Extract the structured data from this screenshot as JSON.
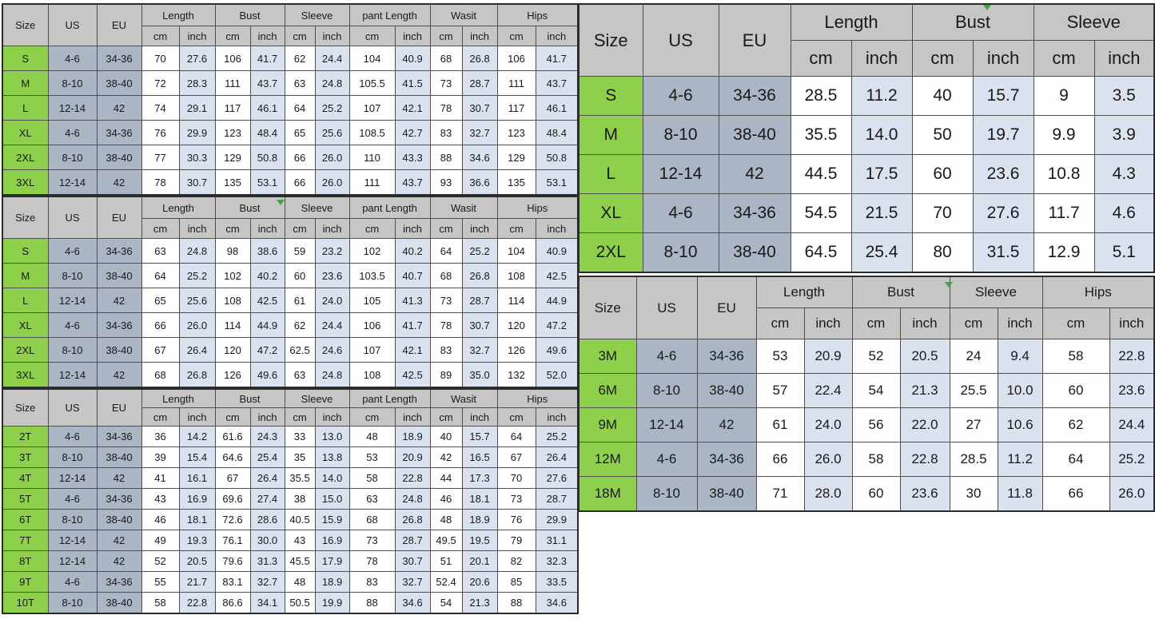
{
  "colors": {
    "header_bg": "#c6c7c5",
    "size_bg": "#8ed04c",
    "useu_bg": "#aab6c3",
    "cm_bg": "#fefefe",
    "inch_bg": "#dbe2ef",
    "border": "#4f4f4f",
    "border_dark": "#2b2b2b",
    "text": "#191919",
    "marker": "#43a047"
  },
  "tables": [
    {
      "corner": [
        "Size",
        "US",
        "EU"
      ],
      "groups": [
        "Length",
        "Bust",
        "Sleeve",
        "pant Length",
        "Wasit",
        "Hips"
      ],
      "units": [
        "cm",
        "inch"
      ],
      "rows": [
        {
          "size": "S",
          "us": "4-6",
          "eu": "34-36",
          "values": [
            "70",
            "27.6",
            "106",
            "41.7",
            "62",
            "24.4",
            "104",
            "40.9",
            "68",
            "26.8",
            "106",
            "41.7"
          ]
        },
        {
          "size": "M",
          "us": "8-10",
          "eu": "38-40",
          "values": [
            "72",
            "28.3",
            "111",
            "43.7",
            "63",
            "24.8",
            "105.5",
            "41.5",
            "73",
            "28.7",
            "111",
            "43.7"
          ]
        },
        {
          "size": "L",
          "us": "12-14",
          "eu": "42",
          "values": [
            "74",
            "29.1",
            "117",
            "46.1",
            "64",
            "25.2",
            "107",
            "42.1",
            "78",
            "30.7",
            "117",
            "46.1"
          ]
        },
        {
          "size": "XL",
          "us": "4-6",
          "eu": "34-36",
          "values": [
            "76",
            "29.9",
            "123",
            "48.4",
            "65",
            "25.6",
            "108.5",
            "42.7",
            "83",
            "32.7",
            "123",
            "48.4"
          ]
        },
        {
          "size": "2XL",
          "us": "8-10",
          "eu": "38-40",
          "values": [
            "77",
            "30.3",
            "129",
            "50.8",
            "66",
            "26.0",
            "110",
            "43.3",
            "88",
            "34.6",
            "129",
            "50.8"
          ]
        },
        {
          "size": "3XL",
          "us": "12-14",
          "eu": "42",
          "values": [
            "78",
            "30.7",
            "135",
            "53.1",
            "66",
            "26.0",
            "111",
            "43.7",
            "93",
            "36.6",
            "135",
            "53.1"
          ]
        }
      ]
    },
    {
      "corner": [
        "Size",
        "US",
        "EU"
      ],
      "groups": [
        "Length",
        "Bust",
        "Sleeve",
        "pant Length",
        "Wasit",
        "Hips"
      ],
      "units": [
        "cm",
        "inch"
      ],
      "rows": [
        {
          "size": "S",
          "us": "4-6",
          "eu": "34-36",
          "values": [
            "63",
            "24.8",
            "98",
            "38.6",
            "59",
            "23.2",
            "102",
            "40.2",
            "64",
            "25.2",
            "104",
            "40.9"
          ]
        },
        {
          "size": "M",
          "us": "8-10",
          "eu": "38-40",
          "values": [
            "64",
            "25.2",
            "102",
            "40.2",
            "60",
            "23.6",
            "103.5",
            "40.7",
            "68",
            "26.8",
            "108",
            "42.5"
          ]
        },
        {
          "size": "L",
          "us": "12-14",
          "eu": "42",
          "values": [
            "65",
            "25.6",
            "108",
            "42.5",
            "61",
            "24.0",
            "105",
            "41.3",
            "73",
            "28.7",
            "114",
            "44.9"
          ]
        },
        {
          "size": "XL",
          "us": "4-6",
          "eu": "34-36",
          "values": [
            "66",
            "26.0",
            "114",
            "44.9",
            "62",
            "24.4",
            "106",
            "41.7",
            "78",
            "30.7",
            "120",
            "47.2"
          ]
        },
        {
          "size": "2XL",
          "us": "8-10",
          "eu": "38-40",
          "values": [
            "67",
            "26.4",
            "120",
            "47.2",
            "62.5",
            "24.6",
            "107",
            "42.1",
            "83",
            "32.7",
            "126",
            "49.6"
          ]
        },
        {
          "size": "3XL",
          "us": "12-14",
          "eu": "42",
          "values": [
            "68",
            "26.8",
            "126",
            "49.6",
            "63",
            "24.8",
            "108",
            "42.5",
            "89",
            "35.0",
            "132",
            "52.0"
          ]
        }
      ]
    },
    {
      "corner": [
        "Size",
        "US",
        "EU"
      ],
      "groups": [
        "Length",
        "Bust",
        "Sleeve",
        "pant Length",
        "Wasit",
        "Hips"
      ],
      "units": [
        "cm",
        "inch"
      ],
      "rows": [
        {
          "size": "2T",
          "us": "4-6",
          "eu": "34-36",
          "values": [
            "36",
            "14.2",
            "61.6",
            "24.3",
            "33",
            "13.0",
            "48",
            "18.9",
            "40",
            "15.7",
            "64",
            "25.2"
          ]
        },
        {
          "size": "3T",
          "us": "8-10",
          "eu": "38-40",
          "values": [
            "39",
            "15.4",
            "64.6",
            "25.4",
            "35",
            "13.8",
            "53",
            "20.9",
            "42",
            "16.5",
            "67",
            "26.4"
          ]
        },
        {
          "size": "4T",
          "us": "12-14",
          "eu": "42",
          "values": [
            "41",
            "16.1",
            "67",
            "26.4",
            "35.5",
            "14.0",
            "58",
            "22.8",
            "44",
            "17.3",
            "70",
            "27.6"
          ]
        },
        {
          "size": "5T",
          "us": "4-6",
          "eu": "34-36",
          "values": [
            "43",
            "16.9",
            "69.6",
            "27.4",
            "38",
            "15.0",
            "63",
            "24.8",
            "46",
            "18.1",
            "73",
            "28.7"
          ]
        },
        {
          "size": "6T",
          "us": "8-10",
          "eu": "38-40",
          "values": [
            "46",
            "18.1",
            "72.6",
            "28.6",
            "40.5",
            "15.9",
            "68",
            "26.8",
            "48",
            "18.9",
            "76",
            "29.9"
          ]
        },
        {
          "size": "7T",
          "us": "12-14",
          "eu": "42",
          "values": [
            "49",
            "19.3",
            "76.1",
            "30.0",
            "43",
            "16.9",
            "73",
            "28.7",
            "49.5",
            "19.5",
            "79",
            "31.1"
          ]
        },
        {
          "size": "8T",
          "us": "12-14",
          "eu": "42",
          "values": [
            "52",
            "20.5",
            "79.6",
            "31.3",
            "45.5",
            "17.9",
            "78",
            "30.7",
            "51",
            "20.1",
            "82",
            "32.3"
          ]
        },
        {
          "size": "9T",
          "us": "4-6",
          "eu": "34-36",
          "values": [
            "55",
            "21.7",
            "83.1",
            "32.7",
            "48",
            "18.9",
            "83",
            "32.7",
            "52.4",
            "20.6",
            "85",
            "33.5"
          ]
        },
        {
          "size": "10T",
          "us": "8-10",
          "eu": "38-40",
          "values": [
            "58",
            "22.8",
            "86.6",
            "34.1",
            "50.5",
            "19.9",
            "88",
            "34.6",
            "54",
            "21.3",
            "88",
            "34.6"
          ]
        }
      ]
    },
    {
      "corner": [
        "Size",
        "US",
        "EU"
      ],
      "groups": [
        "Length",
        "Bust",
        "Sleeve"
      ],
      "units": [
        "cm",
        "inch"
      ],
      "rows": [
        {
          "size": "S",
          "us": "4-6",
          "eu": "34-36",
          "values": [
            "28.5",
            "11.2",
            "40",
            "15.7",
            "9",
            "3.5"
          ]
        },
        {
          "size": "M",
          "us": "8-10",
          "eu": "38-40",
          "values": [
            "35.5",
            "14.0",
            "50",
            "19.7",
            "9.9",
            "3.9"
          ]
        },
        {
          "size": "L",
          "us": "12-14",
          "eu": "42",
          "values": [
            "44.5",
            "17.5",
            "60",
            "23.6",
            "10.8",
            "4.3"
          ]
        },
        {
          "size": "XL",
          "us": "4-6",
          "eu": "34-36",
          "values": [
            "54.5",
            "21.5",
            "70",
            "27.6",
            "11.7",
            "4.6"
          ]
        },
        {
          "size": "2XL",
          "us": "8-10",
          "eu": "38-40",
          "values": [
            "64.5",
            "25.4",
            "80",
            "31.5",
            "12.9",
            "5.1"
          ]
        }
      ]
    },
    {
      "corner": [
        "Size",
        "US",
        "EU"
      ],
      "groups": [
        "Length",
        "Bust",
        "Sleeve",
        "Hips"
      ],
      "units": [
        "cm",
        "inch"
      ],
      "rows": [
        {
          "size": "3M",
          "us": "4-6",
          "eu": "34-36",
          "values": [
            "53",
            "20.9",
            "52",
            "20.5",
            "24",
            "9.4",
            "58",
            "22.8"
          ]
        },
        {
          "size": "6M",
          "us": "8-10",
          "eu": "38-40",
          "values": [
            "57",
            "22.4",
            "54",
            "21.3",
            "25.5",
            "10.0",
            "60",
            "23.6"
          ]
        },
        {
          "size": "9M",
          "us": "12-14",
          "eu": "42",
          "values": [
            "61",
            "24.0",
            "56",
            "22.0",
            "27",
            "10.6",
            "62",
            "24.4"
          ]
        },
        {
          "size": "12M",
          "us": "4-6",
          "eu": "34-36",
          "values": [
            "66",
            "26.0",
            "58",
            "22.8",
            "28.5",
            "11.2",
            "64",
            "25.2"
          ]
        },
        {
          "size": "18M",
          "us": "8-10",
          "eu": "38-40",
          "values": [
            "71",
            "28.0",
            "60",
            "23.6",
            "30",
            "11.8",
            "66",
            "26.0"
          ]
        }
      ]
    }
  ]
}
